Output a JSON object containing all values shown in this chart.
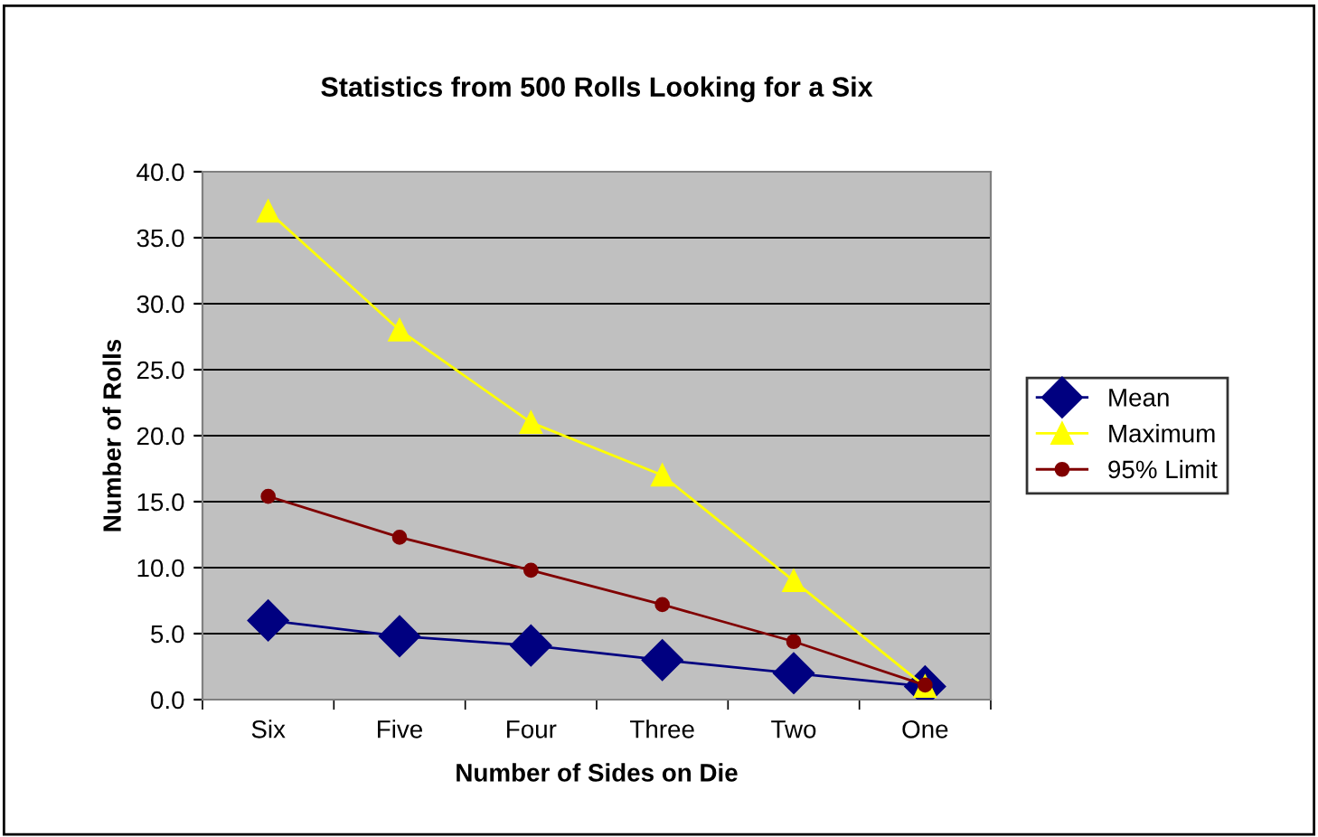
{
  "chart_data": {
    "type": "line",
    "title": "Statistics from 500 Rolls Looking for a Six",
    "xlabel": "Number of Sides on Die",
    "ylabel": "Number of Rolls",
    "categories": [
      "Six",
      "Five",
      "Four",
      "Three",
      "Two",
      "One"
    ],
    "series": [
      {
        "name": "Mean",
        "color": "#000080",
        "marker": "diamond",
        "values": [
          6.0,
          4.8,
          4.1,
          3.0,
          2.0,
          1.0
        ]
      },
      {
        "name": "Maximum",
        "color": "#ffff00",
        "marker": "triangle",
        "values": [
          37,
          28,
          21,
          17,
          9,
          1
        ]
      },
      {
        "name": "95% Limit",
        "color": "#800000",
        "marker": "circle",
        "values": [
          15.4,
          12.3,
          9.8,
          7.2,
          4.4,
          1.1
        ]
      }
    ],
    "ylim": [
      0,
      40
    ],
    "yticks": [
      {
        "value": 0,
        "label": "0.0"
      },
      {
        "value": 5,
        "label": "5.0"
      },
      {
        "value": 10,
        "label": "10.0"
      },
      {
        "value": 15,
        "label": "15.0"
      },
      {
        "value": 20,
        "label": "20.0"
      },
      {
        "value": 25,
        "label": "25.0"
      },
      {
        "value": 30,
        "label": "30.0"
      },
      {
        "value": 35,
        "label": "35.0"
      },
      {
        "value": 40,
        "label": "40.0"
      }
    ],
    "grid": "y",
    "legend": "right",
    "line_style": "solid"
  }
}
